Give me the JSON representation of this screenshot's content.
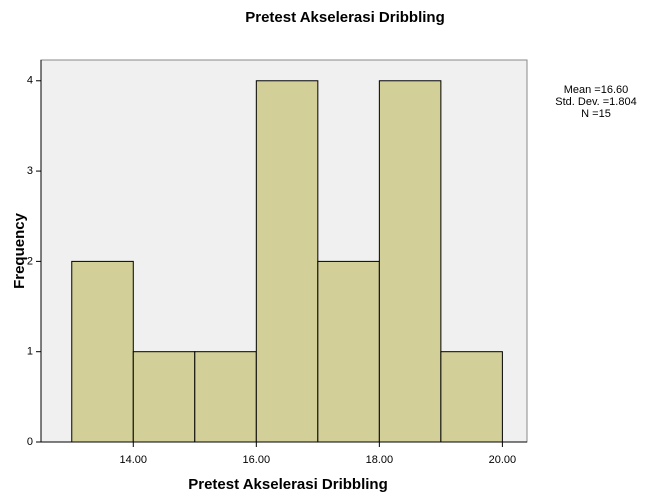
{
  "chart_data": {
    "type": "histogram",
    "title": "Pretest Akselerasi  Dribbling",
    "xlabel": "Pretest Akselerasi  Dribbling",
    "ylabel": "Frequency",
    "bins": [
      13,
      14,
      15,
      16,
      17,
      18,
      19,
      20
    ],
    "counts": [
      2,
      1,
      1,
      4,
      2,
      4,
      1
    ],
    "color": "#d3cf98",
    "xlim": [
      12.5,
      20.4
    ],
    "ylim": [
      0,
      4.23
    ],
    "xticks": [
      {
        "value": 14,
        "label": "14.00"
      },
      {
        "value": 16,
        "label": "16.00"
      },
      {
        "value": 18,
        "label": "18.00"
      },
      {
        "value": 20,
        "label": "20.00"
      }
    ],
    "yticks": [
      0,
      1,
      2,
      3,
      4
    ],
    "annotations": [
      "Mean =16.60",
      "Std. Dev. =1.804",
      "N =15"
    ]
  }
}
